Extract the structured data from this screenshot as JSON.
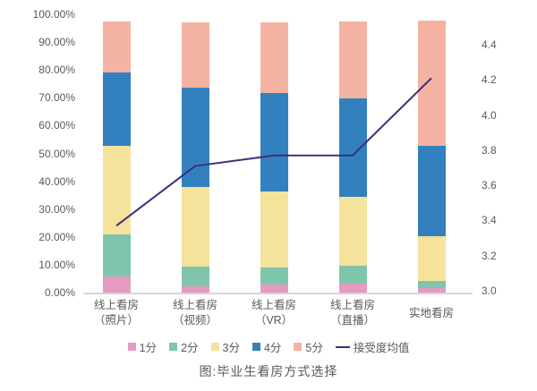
{
  "chart_data": {
    "type": "bar",
    "subtype": "stacked-bar-with-line-dual-axis",
    "title": "图:毕业生看房方式选择",
    "categories": [
      [
        "线上看房",
        "（照片）"
      ],
      [
        "线上看房",
        "（视频）"
      ],
      [
        "线上看房",
        "（VR）"
      ],
      [
        "线上看房",
        "（直播）"
      ],
      [
        "实地看房"
      ]
    ],
    "series": [
      {
        "name": "1分",
        "type": "bar",
        "color": "#e59ac1",
        "values": [
          5.9,
          2.1,
          2.9,
          3.2,
          1.5
        ]
      },
      {
        "name": "2分",
        "type": "bar",
        "color": "#7fc5ac",
        "values": [
          14.9,
          7.2,
          6.2,
          6.4,
          2.8
        ]
      },
      {
        "name": "3分",
        "type": "bar",
        "color": "#f5e29b",
        "values": [
          31.8,
          28.7,
          27.2,
          24.7,
          16.0
        ]
      },
      {
        "name": "4分",
        "type": "bar",
        "color": "#3380bf",
        "values": [
          26.5,
          35.6,
          35.4,
          35.6,
          32.5
        ]
      },
      {
        "name": "5分",
        "type": "bar",
        "color": "#f4b3a2",
        "values": [
          18.2,
          23.5,
          25.5,
          27.6,
          45.0
        ]
      }
    ],
    "line_series": {
      "name": "接受度均值",
      "color": "#3b2f80",
      "values": [
        3.37,
        3.71,
        3.77,
        3.77,
        4.21
      ]
    },
    "left_axis": {
      "ticks": [
        "100.00%",
        "90.00%",
        "80.00%",
        "70.00%",
        "60.00%",
        "50.00%",
        "40.00%",
        "30.00%",
        "20.00%",
        "10.00%",
        "0.00%"
      ],
      "min": 0,
      "max": 100,
      "unit": "%"
    },
    "right_axis": {
      "ticks": [
        "4.4",
        "4.2",
        "4.0",
        "3.8",
        "3.6",
        "3.4",
        "3.2",
        "3.0"
      ],
      "min": 3.0,
      "max": 4.4
    },
    "legend_position": "bottom",
    "grid": false,
    "colors": {
      "axis_text": "#595959",
      "axis_line": "#d6d6d6",
      "background": "#ffffff"
    }
  }
}
